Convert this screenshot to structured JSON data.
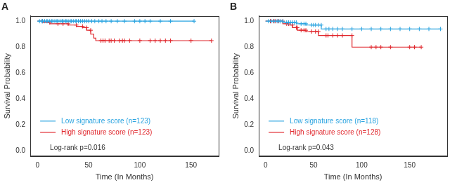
{
  "chart_data": [
    {
      "type": "line",
      "title": "A",
      "x_label": "Time (In Months)",
      "y_label": "Survival Probability",
      "xlim": [
        -7,
        177
      ],
      "xticks": [
        0,
        50,
        100,
        150
      ],
      "ylim": [
        -0.04,
        1.04
      ],
      "yticks": [
        {
          "value": 0,
          "label": "0.0"
        },
        {
          "value": 0.2,
          "label": "0.2"
        },
        {
          "value": 0.4,
          "label": "0.4"
        },
        {
          "value": 0.6,
          "label": "0.6"
        },
        {
          "value": 0.8,
          "label": "0.8"
        },
        {
          "value": 1,
          "label": "1.0"
        }
      ],
      "grid": false,
      "legend": "lower left",
      "annotation": "Log-rank p=0.016",
      "series": [
        {
          "name": "Low signature score (n=123)",
          "color": "#29a3e0",
          "marker": "cross",
          "line_style": "step",
          "x": [
            0,
            2,
            4,
            5,
            7,
            9,
            10,
            12,
            14,
            15,
            17,
            19,
            20,
            22,
            24,
            25,
            27,
            28,
            30,
            32,
            33,
            35,
            37,
            38,
            40,
            42,
            44,
            46,
            48,
            50,
            53,
            56,
            60,
            63,
            67,
            72,
            78,
            85,
            95,
            100,
            105,
            110,
            120,
            130,
            153
          ],
          "values": [
            1,
            1,
            1,
            1,
            1,
            1,
            1,
            1,
            1,
            1,
            1,
            1,
            1,
            1,
            1,
            1,
            1,
            1,
            1,
            1,
            1,
            1,
            1,
            1,
            1,
            1,
            1,
            1,
            1,
            1,
            1,
            1,
            1,
            1,
            1,
            1,
            1,
            1,
            1,
            1,
            1,
            1,
            1,
            1,
            1
          ]
        },
        {
          "name": "High signature score (n=123)",
          "color": "#e0252b",
          "marker": "cross",
          "line_style": "step",
          "x": [
            0,
            5,
            8,
            12,
            15,
            20,
            25,
            30,
            35,
            38,
            42,
            44,
            46,
            48,
            50,
            52,
            55,
            57,
            60,
            62,
            64,
            66,
            70,
            72,
            75,
            80,
            83,
            85,
            90,
            100,
            110,
            115,
            120,
            125,
            130,
            150,
            170
          ],
          "values": [
            1,
            1,
            0.99,
            0.99,
            0.98,
            0.98,
            0.98,
            0.98,
            0.97,
            0.97,
            0.96,
            0.96,
            0.95,
            0.95,
            0.93,
            0.93,
            0.9,
            0.87,
            0.85,
            0.85,
            0.85,
            0.85,
            0.85,
            0.85,
            0.85,
            0.85,
            0.85,
            0.85,
            0.85,
            0.85,
            0.85,
            0.85,
            0.85,
            0.85,
            0.85,
            0.85,
            0.85
          ]
        }
      ]
    },
    {
      "type": "line",
      "title": "B",
      "x_label": "Time (In Months)",
      "y_label": "Survival Probability",
      "xlim": [
        -7,
        189
      ],
      "xticks": [
        0,
        50,
        100,
        150
      ],
      "ylim": [
        -0.04,
        1.04
      ],
      "yticks": [
        {
          "value": 0,
          "label": "0.0"
        },
        {
          "value": 0.2,
          "label": "0.2"
        },
        {
          "value": 0.4,
          "label": "0.4"
        },
        {
          "value": 0.6,
          "label": "0.6"
        },
        {
          "value": 0.8,
          "label": "0.8"
        },
        {
          "value": 1,
          "label": "1.0"
        }
      ],
      "grid": false,
      "legend": "lower left",
      "annotation": "Log-rank p=0.043",
      "series": [
        {
          "name": "Low signature score (n=118)",
          "color": "#29a3e0",
          "marker": "cross",
          "line_style": "step",
          "x": [
            0,
            3,
            6,
            9,
            12,
            14,
            16,
            18,
            20,
            22,
            24,
            26,
            28,
            30,
            32,
            35,
            37,
            40,
            42,
            45,
            48,
            50,
            52,
            55,
            58,
            60,
            63,
            66,
            70,
            75,
            80,
            90,
            100,
            110,
            120,
            130,
            140,
            150,
            160,
            170,
            182
          ],
          "values": [
            1,
            1,
            1,
            1,
            1,
            1,
            1,
            1,
            0.99,
            0.99,
            0.99,
            0.99,
            0.99,
            0.99,
            0.99,
            0.98,
            0.98,
            0.98,
            0.98,
            0.97,
            0.97,
            0.97,
            0.97,
            0.97,
            0.97,
            0.94,
            0.94,
            0.94,
            0.94,
            0.94,
            0.94,
            0.94,
            0.94,
            0.94,
            0.94,
            0.94,
            0.94,
            0.94,
            0.94,
            0.94,
            0.94
          ]
        },
        {
          "name": "High signature score (n=128)",
          "color": "#e0252b",
          "marker": "cross",
          "line_style": "step",
          "x": [
            0,
            5,
            8,
            10,
            13,
            16,
            18,
            20,
            22,
            24,
            26,
            28,
            30,
            32,
            33,
            35,
            37,
            40,
            42,
            45,
            48,
            52,
            55,
            60,
            63,
            65,
            70,
            75,
            80,
            90,
            100,
            110,
            115,
            120,
            130,
            150,
            155,
            162
          ],
          "values": [
            1,
            1,
            1,
            1,
            1,
            1,
            1,
            0.98,
            0.98,
            0.98,
            0.97,
            0.97,
            0.95,
            0.95,
            0.95,
            0.93,
            0.93,
            0.93,
            0.93,
            0.92,
            0.92,
            0.92,
            0.92,
            0.89,
            0.89,
            0.89,
            0.89,
            0.89,
            0.89,
            0.89,
            0.8,
            0.8,
            0.8,
            0.8,
            0.8,
            0.8,
            0.8,
            0.8
          ]
        }
      ]
    }
  ]
}
